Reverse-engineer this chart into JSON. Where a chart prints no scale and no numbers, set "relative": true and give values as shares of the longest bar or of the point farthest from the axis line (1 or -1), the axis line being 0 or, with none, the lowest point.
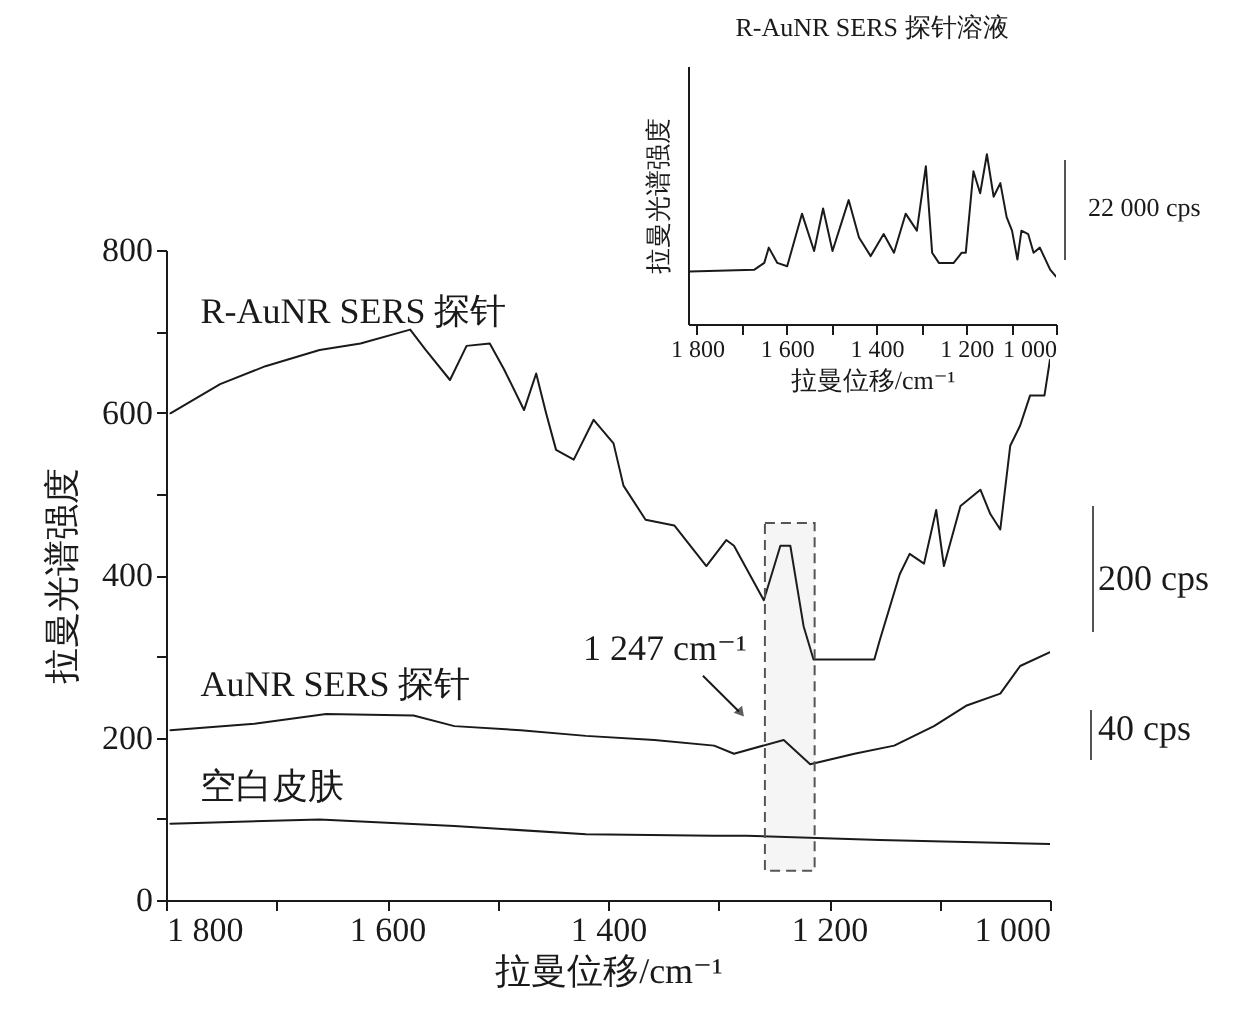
{
  "chart_data": [
    {
      "type": "line",
      "xlabel": "拉曼位移/cm⁻¹",
      "ylabel": "拉曼光谱强度",
      "xlim": [
        1800,
        1000
      ],
      "ylim": [
        0,
        800
      ],
      "xticks": [
        {
          "value": 1800,
          "label": "1 800"
        },
        {
          "value": 1700,
          "label": null
        },
        {
          "value": 1600,
          "label": "1 600"
        },
        {
          "value": 1500,
          "label": null
        },
        {
          "value": 1400,
          "label": "1 400"
        },
        {
          "value": 1300,
          "label": null
        },
        {
          "value": 1200,
          "label": "1 200"
        },
        {
          "value": 1100,
          "label": null
        },
        {
          "value": 1000,
          "label": "1 000"
        }
      ],
      "yticks": [
        0,
        {
          "value": 100,
          "label": null
        },
        200,
        {
          "value": 300,
          "label": null
        },
        400,
        {
          "value": 500,
          "label": null
        },
        600,
        {
          "value": 700,
          "label": null
        },
        800
      ],
      "series": [
        {
          "name": "R-AuNR SERS 探针",
          "color": "#1a1a1a",
          "x": [
            1796,
            1751,
            1710,
            1661,
            1624,
            1579,
            1565,
            1543,
            1528,
            1507,
            1494,
            1476,
            1465,
            1456,
            1447,
            1431,
            1413,
            1395,
            1386,
            1366,
            1340,
            1311,
            1293,
            1286,
            1259,
            1244,
            1235,
            1223,
            1214,
            1190,
            1159,
            1154,
            1136,
            1127,
            1114,
            1103,
            1096,
            1081,
            1063,
            1054,
            1045,
            1036,
            1027,
            1018,
            1005,
            1000
          ],
          "values": [
            599,
            635,
            657,
            677,
            685,
            702,
            677,
            640,
            682,
            685,
            653,
            603,
            648,
            599,
            554,
            542,
            591,
            562,
            510,
            468,
            461,
            411,
            443,
            436,
            369,
            436,
            436,
            337,
            296,
            296,
            296,
            320,
            401,
            426,
            414,
            480,
            411,
            485,
            505,
            475,
            456,
            559,
            584,
            621,
            621,
            665
          ]
        },
        {
          "name": "AuNR SERS 探针",
          "color": "#1a1a1a",
          "x": [
            1796,
            1720,
            1655,
            1576,
            1539,
            1479,
            1420,
            1358,
            1304,
            1286,
            1241,
            1217,
            1177,
            1141,
            1105,
            1076,
            1045,
            1027,
            1000
          ],
          "values": [
            209,
            217,
            229,
            227,
            214,
            209,
            202,
            197,
            190,
            180,
            197,
            167,
            180,
            190,
            214,
            239,
            254,
            288,
            305
          ]
        },
        {
          "name": "空白皮肤",
          "color": "#1a1a1a",
          "x": [
            1796,
            1661,
            1539,
            1420,
            1304,
            1275,
            1154,
            1000
          ],
          "values": [
            94,
            99,
            91,
            81,
            79,
            79,
            74,
            69
          ]
        }
      ],
      "bands": [
        {
          "axis": "x",
          "from": 1258,
          "to": 1213,
          "label": "1 247 cm⁻¹",
          "color": "#555555"
        }
      ],
      "annotations": [
        "200 cps",
        "40 cps"
      ]
    },
    {
      "type": "line",
      "title": "R-AuNR SERS 探针溶液",
      "xlabel": "拉曼位移/cm⁻¹",
      "ylabel": "拉曼光谱强度",
      "relative": true,
      "tick_labels": "x",
      "xlim": [
        1820,
        1000
      ],
      "xticks": [
        {
          "value": 1800,
          "label": "1 800"
        },
        {
          "value": 1700,
          "label": null
        },
        {
          "value": 1600,
          "label": "1 600"
        },
        {
          "value": 1500,
          "label": null
        },
        {
          "value": 1400,
          "label": "1 400"
        },
        {
          "value": 1300,
          "label": null
        },
        {
          "value": 1200,
          "label": "1 200"
        },
        {
          "value": 1100,
          "label": null
        },
        {
          "value": 1000,
          "label": "1 000"
        }
      ],
      "series": [
        {
          "color": "#1a1a1a",
          "x": [
            1816,
            1672,
            1650,
            1640,
            1621,
            1599,
            1566,
            1539,
            1519,
            1498,
            1462,
            1439,
            1413,
            1384,
            1361,
            1335,
            1310,
            1290,
            1276,
            1261,
            1228,
            1210,
            1201,
            1184,
            1169,
            1154,
            1139,
            1124,
            1110,
            1098,
            1086,
            1077,
            1062,
            1050,
            1036,
            1013,
            1000
          ],
          "values": [
            0.31,
            0.32,
            0.36,
            0.45,
            0.36,
            0.34,
            0.65,
            0.43,
            0.68,
            0.43,
            0.73,
            0.51,
            0.4,
            0.53,
            0.42,
            0.65,
            0.55,
            0.93,
            0.42,
            0.36,
            0.36,
            0.42,
            0.42,
            0.9,
            0.77,
            1,
            0.75,
            0.83,
            0.63,
            0.55,
            0.38,
            0.55,
            0.53,
            0.42,
            0.45,
            0.32,
            0.28
          ]
        }
      ],
      "annotations": [
        "22 000 cps"
      ]
    }
  ]
}
